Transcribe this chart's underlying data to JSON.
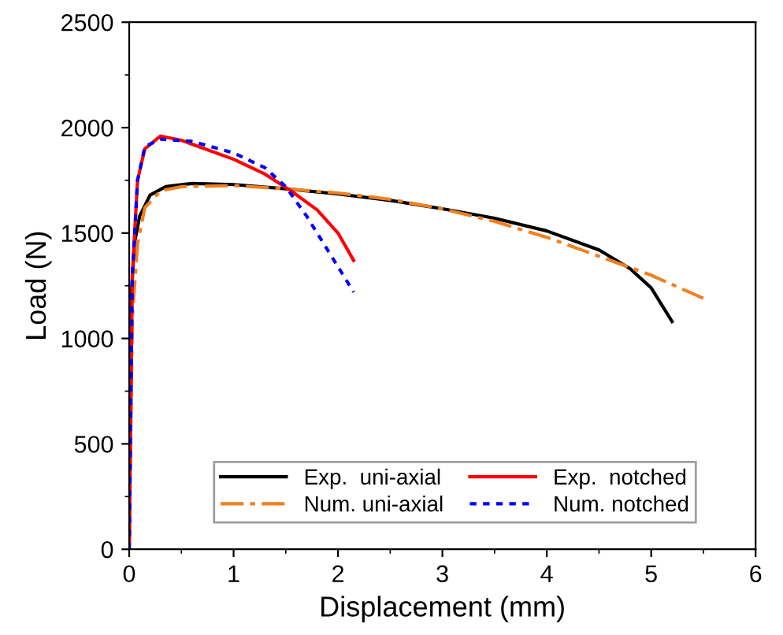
{
  "chart_data": {
    "type": "line",
    "xlabel": "Displacement (mm)",
    "ylabel": "Load (N)",
    "xlim": [
      0,
      6
    ],
    "ylim": [
      0,
      2500
    ],
    "xticks": [
      0,
      1,
      2,
      3,
      4,
      5,
      6
    ],
    "yticks": [
      0,
      500,
      1000,
      1500,
      2000,
      2500
    ],
    "grid": false,
    "legend": "bottom",
    "marker": "none",
    "series": [
      {
        "name": "Exp.  uni-axial",
        "color": "#000000",
        "line_style": "solid",
        "x": [
          0,
          0.02,
          0.05,
          0.1,
          0.2,
          0.35,
          0.6,
          1,
          1.5,
          2,
          2.5,
          3,
          3.5,
          4,
          4.5,
          4.8,
          5,
          5.2
        ],
        "values": [
          0,
          1200,
          1450,
          1580,
          1680,
          1720,
          1735,
          1730,
          1710,
          1685,
          1655,
          1615,
          1570,
          1510,
          1420,
          1330,
          1240,
          1080
        ]
      },
      {
        "name": "Num. uni-axial",
        "color": "#f08020",
        "line_style": "dashdot",
        "x": [
          0,
          0.03,
          0.08,
          0.15,
          0.3,
          0.5,
          1,
          1.5,
          2,
          2.5,
          3,
          3.5,
          4,
          4.5,
          5,
          5.5
        ],
        "values": [
          0,
          1100,
          1450,
          1620,
          1700,
          1720,
          1725,
          1710,
          1690,
          1660,
          1615,
          1555,
          1480,
          1390,
          1300,
          1190
        ]
      },
      {
        "name": "Exp.  notched",
        "color": "#ff0000",
        "line_style": "solid",
        "x": [
          0,
          0.03,
          0.08,
          0.15,
          0.3,
          0.5,
          1,
          1.3,
          1.55,
          1.8,
          2,
          2.15
        ],
        "values": [
          0,
          1300,
          1750,
          1900,
          1960,
          1940,
          1850,
          1780,
          1700,
          1610,
          1500,
          1370
        ]
      },
      {
        "name": "Num. notched",
        "color": "#0000ff",
        "line_style": "dotted",
        "x": [
          0,
          0.03,
          0.08,
          0.15,
          0.3,
          0.6,
          1,
          1.3,
          1.5,
          1.7,
          1.9,
          2.15
        ],
        "values": [
          0,
          1300,
          1750,
          1910,
          1945,
          1935,
          1880,
          1810,
          1720,
          1580,
          1420,
          1220
        ]
      }
    ]
  }
}
